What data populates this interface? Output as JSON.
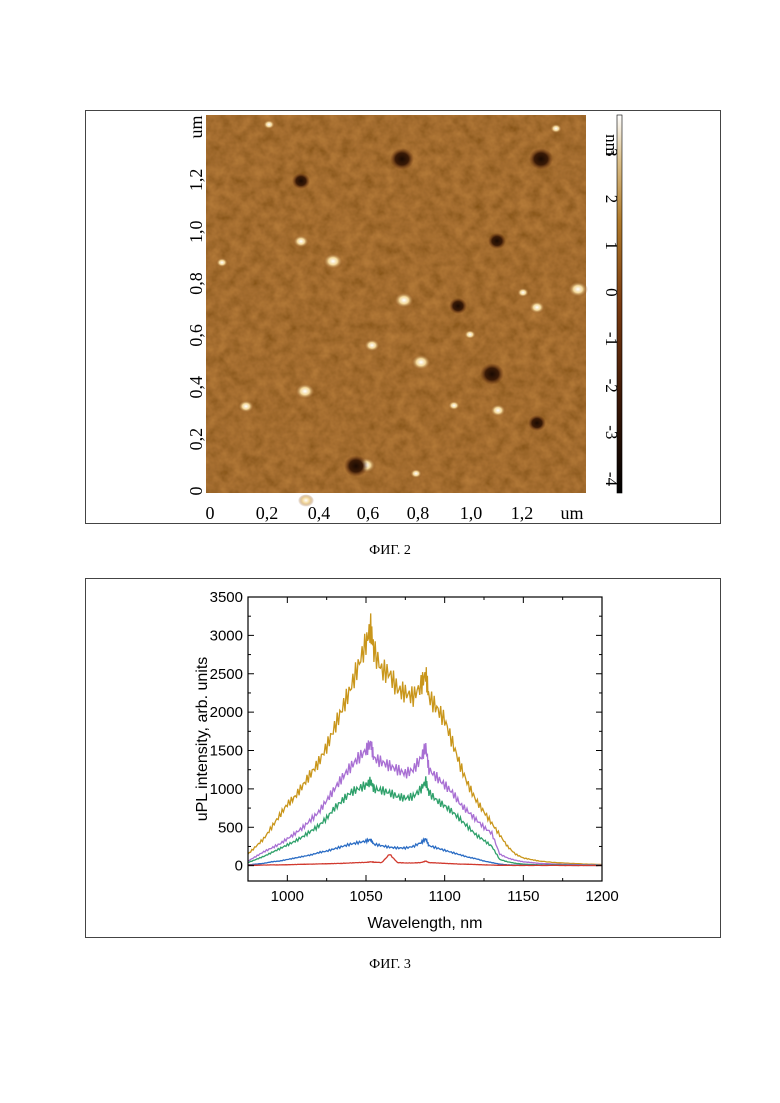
{
  "figures": [
    {
      "caption": "ФИГ. 2",
      "afm": {
        "x_axis_unit": "um",
        "y_axis_unit": "um",
        "x_ticks": [
          "0",
          "0,2",
          "0,4",
          "0,6",
          "0,8",
          "1,0",
          "1,2"
        ],
        "y_ticks": [
          "0",
          "0,2",
          "0,4",
          "0,6",
          "0,8",
          "1,0",
          "1,2"
        ],
        "colorbar_ticks": [
          "3",
          "2",
          "1",
          "0",
          "-1",
          "-2",
          "-3",
          "-4"
        ],
        "colorbar_unit": "nm",
        "colorbar_range": [
          -4.3,
          3.8
        ],
        "colors": {
          "low": "#000000",
          "mid": "#7a3a10",
          "high": "#ffffff",
          "base": "#8d4e18"
        }
      }
    },
    {
      "caption": "ФИГ. 3",
      "chart_data": {
        "type": "line",
        "xlabel": "Wavelength, nm",
        "ylabel": "uPL intensity, arb. units",
        "xlim": [
          975,
          1200
        ],
        "ylim": [
          -200,
          3500
        ],
        "x_ticks": [
          1000,
          1050,
          1100,
          1150,
          1200
        ],
        "y_ticks": [
          0,
          500,
          1000,
          1500,
          2000,
          2500,
          3000,
          3500
        ],
        "grid": false,
        "legend": "none",
        "x": [
          975,
          980,
          985,
          990,
          995,
          1000,
          1005,
          1010,
          1015,
          1020,
          1025,
          1030,
          1035,
          1040,
          1045,
          1050,
          1053,
          1055,
          1060,
          1065,
          1070,
          1075,
          1080,
          1085,
          1088,
          1090,
          1095,
          1100,
          1105,
          1110,
          1115,
          1120,
          1125,
          1130,
          1135,
          1140,
          1145,
          1150,
          1155,
          1160,
          1170,
          1180,
          1190,
          1200
        ],
        "series": [
          {
            "color": "#c9961b",
            "values": [
              150,
              250,
              350,
              500,
              650,
              800,
              900,
              1050,
              1200,
              1350,
              1550,
              1800,
              2050,
              2300,
              2600,
              2900,
              3100,
              2800,
              2550,
              2500,
              2300,
              2250,
              2200,
              2350,
              2500,
              2200,
              2050,
              1900,
              1600,
              1300,
              1050,
              850,
              700,
              550,
              400,
              250,
              150,
              100,
              80,
              60,
              40,
              30,
              20,
              15
            ]
          },
          {
            "color": "#a86fd3",
            "values": [
              60,
              120,
              180,
              230,
              280,
              350,
              420,
              500,
              600,
              700,
              850,
              1000,
              1150,
              1280,
              1400,
              1500,
              1600,
              1400,
              1350,
              1300,
              1250,
              1200,
              1250,
              1400,
              1550,
              1250,
              1150,
              1050,
              950,
              800,
              700,
              600,
              500,
              420,
              150,
              100,
              70,
              50,
              40,
              30,
              20,
              15,
              10,
              10
            ]
          },
          {
            "color": "#2ea06a",
            "values": [
              40,
              80,
              120,
              170,
              220,
              270,
              320,
              380,
              450,
              520,
              620,
              750,
              850,
              950,
              1000,
              1050,
              1100,
              1000,
              980,
              950,
              900,
              880,
              900,
              1000,
              1100,
              950,
              850,
              780,
              700,
              600,
              500,
              400,
              330,
              250,
              80,
              50,
              30,
              20,
              15,
              10,
              10,
              8,
              5,
              5
            ]
          },
          {
            "color": "#2a6cc4",
            "values": [
              10,
              20,
              30,
              50,
              60,
              80,
              100,
              120,
              140,
              170,
              190,
              220,
              250,
              280,
              300,
              320,
              340,
              280,
              260,
              240,
              230,
              230,
              250,
              300,
              350,
              260,
              230,
              200,
              170,
              140,
              110,
              90,
              60,
              40,
              20,
              10,
              8,
              5,
              5,
              5,
              5,
              3,
              3,
              3
            ]
          },
          {
            "color": "#d13a2f",
            "values": [
              5,
              5,
              8,
              10,
              10,
              12,
              15,
              18,
              20,
              22,
              25,
              28,
              30,
              35,
              40,
              42,
              50,
              45,
              40,
              150,
              40,
              35,
              35,
              40,
              60,
              40,
              35,
              30,
              25,
              20,
              18,
              15,
              10,
              8,
              5,
              5,
              3,
              3,
              3,
              3,
              3,
              2,
              2,
              2
            ]
          }
        ]
      }
    }
  ]
}
